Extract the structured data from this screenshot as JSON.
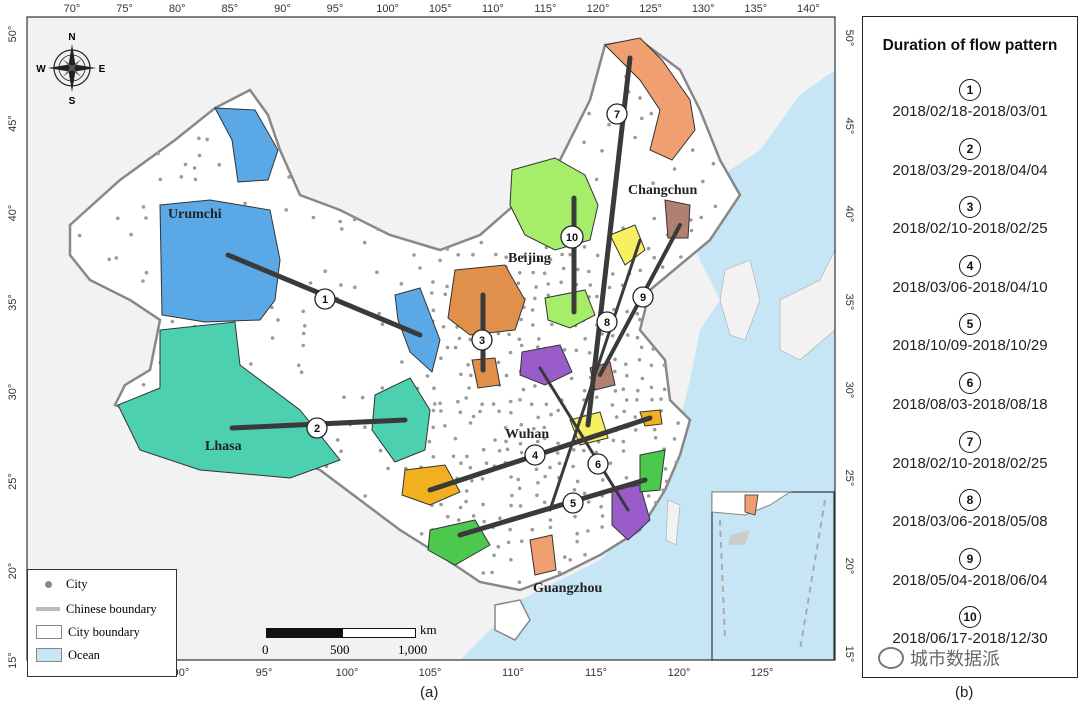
{
  "panel_a_label": "(a)",
  "panel_b_label": "(b)",
  "top_ticks": [
    "70°",
    "75°",
    "80°",
    "85°",
    "90°",
    "95°",
    "100°",
    "105°",
    "110°",
    "115°",
    "120°",
    "125°",
    "130°",
    "135°",
    "140°"
  ],
  "bottom_ticks": [
    "85°",
    "90°",
    "95°",
    "100°",
    "105°",
    "110°",
    "115°",
    "120°",
    "125°"
  ],
  "left_ticks": [
    "50°",
    "45°",
    "40°",
    "35°",
    "30°",
    "25°",
    "20°",
    "15°"
  ],
  "right_ticks": [
    "50°",
    "45°",
    "40°",
    "35°",
    "30°",
    "25°",
    "20°",
    "15°"
  ],
  "compass": {
    "n": "N",
    "s": "S",
    "e": "E",
    "w": "W"
  },
  "cities": {
    "urumchi": "Urumchi",
    "lhasa": "Lhasa",
    "beijing": "Beijing",
    "changchun": "Changchun",
    "wuhan": "Wuhan",
    "guangzhou": "Guangzhou"
  },
  "flow_markers": [
    "1",
    "2",
    "3",
    "4",
    "5",
    "6",
    "7",
    "8",
    "9",
    "10"
  ],
  "legend": {
    "city": "City",
    "chinese_boundary": "Chinese boundary",
    "city_boundary": "City boundary",
    "ocean": "Ocean"
  },
  "scalebar": {
    "unit": "km",
    "labels": [
      "0",
      "500",
      "1,000"
    ]
  },
  "panel_b": {
    "title": "Duration of flow pattern",
    "items": [
      {
        "num": "1",
        "range": "2018/02/18-2018/03/01"
      },
      {
        "num": "2",
        "range": "2018/03/29-2018/04/04"
      },
      {
        "num": "3",
        "range": "2018/02/10-2018/02/25"
      },
      {
        "num": "4",
        "range": "2018/03/06-2018/04/10"
      },
      {
        "num": "5",
        "range": "2018/10/09-2018/10/29"
      },
      {
        "num": "6",
        "range": "2018/08/03-2018/08/18"
      },
      {
        "num": "7",
        "range": "2018/02/10-2018/02/25"
      },
      {
        "num": "8",
        "range": "2018/03/06-2018/05/08"
      },
      {
        "num": "9",
        "range": "2018/05/04-2018/06/04"
      },
      {
        "num": "10",
        "range": "2018/06/17-2018/12/30"
      }
    ]
  },
  "watermark": "城市数据派",
  "colors": {
    "ocean": "#c6e6f5",
    "land": "#ffffff",
    "neighbor": "#f0f0f0",
    "blue_region": "#5aa9e6",
    "teal_region": "#4dd0b0",
    "orange_region": "#e0904a",
    "salmon_region": "#f0a070",
    "green_region": "#a6ee6a",
    "dark_green": "#4cc94c",
    "gold": "#f0b020",
    "purple": "#9a5cc8",
    "yellow": "#f8f060",
    "brown": "#b08070"
  }
}
